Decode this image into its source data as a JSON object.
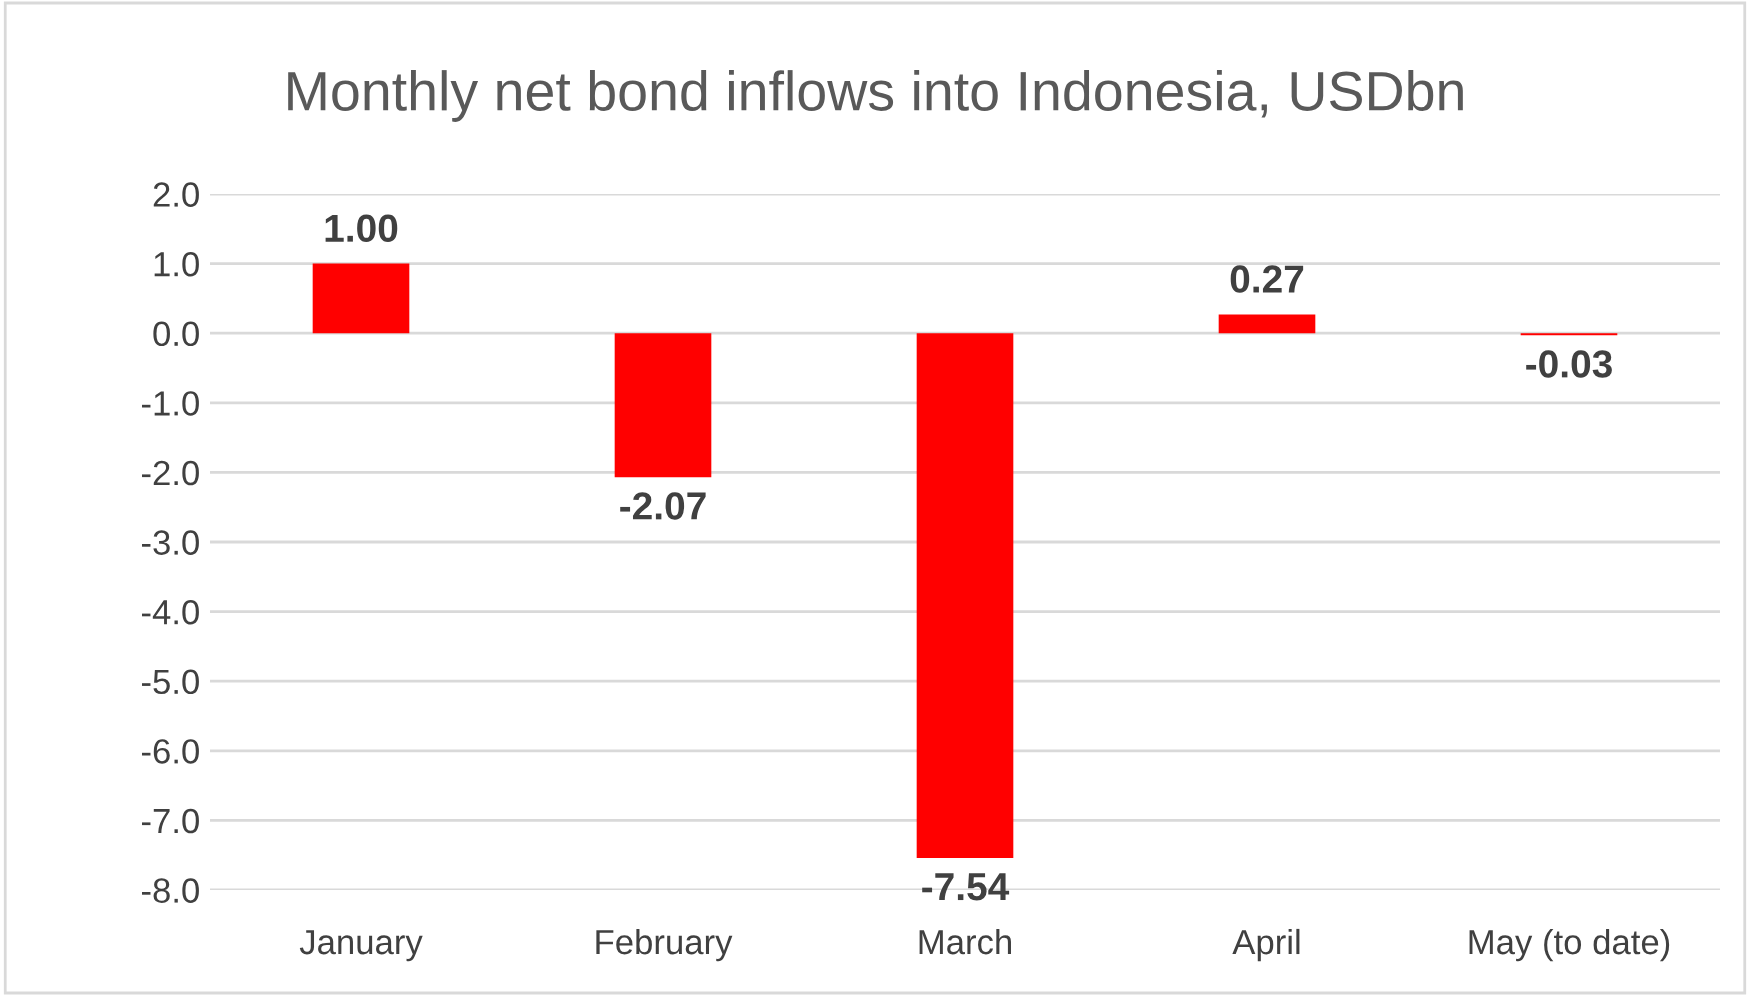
{
  "chart_data": {
    "type": "bar",
    "title": "Monthly net bond inflows into Indonesia, USDbn",
    "categories": [
      "January",
      "February",
      "March",
      "April",
      "May (to date)"
    ],
    "values": [
      1.0,
      -2.07,
      -7.54,
      0.27,
      -0.03
    ],
    "value_labels": [
      "1.00",
      "-2.07",
      "-7.54",
      "0.27",
      "-0.03"
    ],
    "color": "#ff0000",
    "ylim": [
      -8,
      2
    ],
    "yticks": [
      {
        "value": 2,
        "label": "2.0"
      },
      {
        "value": 1,
        "label": "1.0"
      },
      {
        "value": 0,
        "label": "0.0"
      },
      {
        "value": -1,
        "label": "-1.0"
      },
      {
        "value": -2,
        "label": "-2.0"
      },
      {
        "value": -3,
        "label": "-3.0"
      },
      {
        "value": -4,
        "label": "-4.0"
      },
      {
        "value": -5,
        "label": "-5.0"
      },
      {
        "value": -6,
        "label": "-6.0"
      },
      {
        "value": -7,
        "label": "-7.0"
      },
      {
        "value": -8,
        "label": "-8.0"
      }
    ],
    "grid": "y"
  }
}
